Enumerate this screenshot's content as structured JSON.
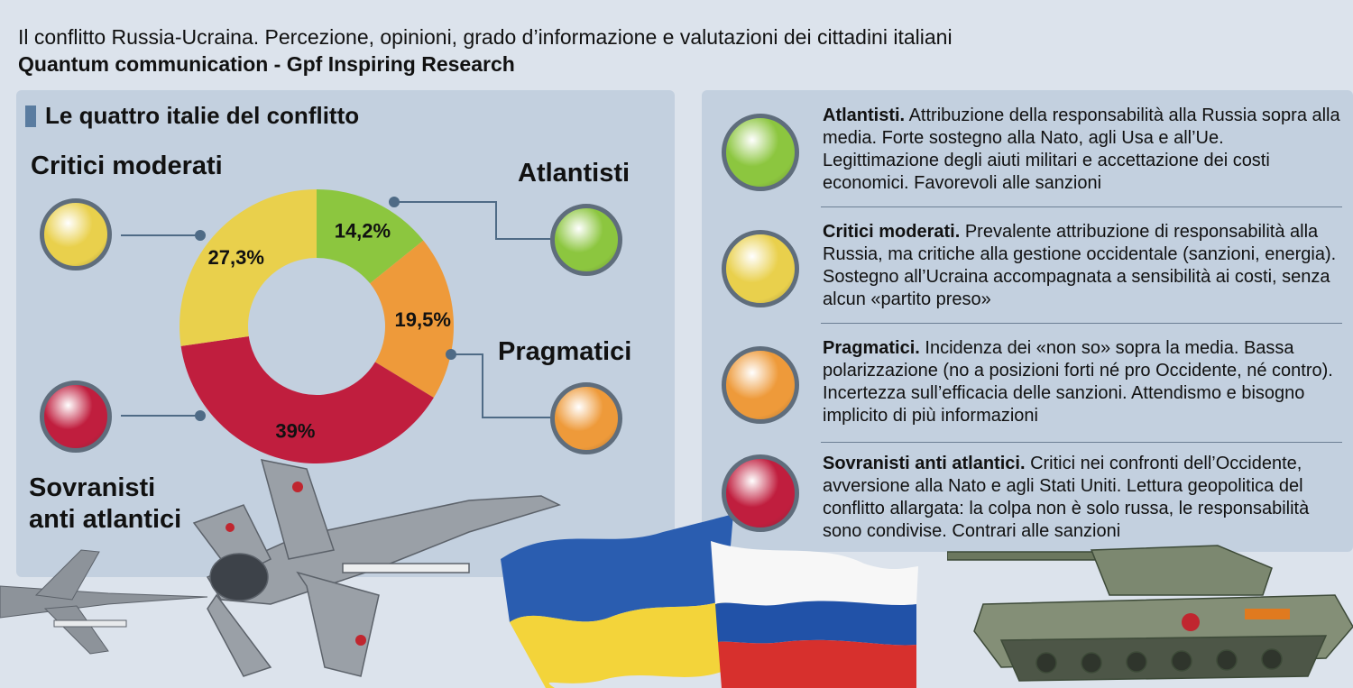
{
  "header": {
    "title": "Il conflitto Russia-Ucraina. Percezione, opinioni, grado d’informazione e valutazioni dei cittadini italiani",
    "subtitle": "Quantum communication - Gpf Inspiring Research"
  },
  "section_title": "Le quattro italie del conflitto",
  "categories": {
    "critici": "Critici moderati",
    "atlantisti": "Atlantisti",
    "pragmatici": "Pragmatici",
    "sovranisti_line1": "Sovranisti",
    "sovranisti_line2": "anti atlantici"
  },
  "colors": {
    "atlantisti": "#8cc63f",
    "pragmatici": "#ee9a3a",
    "sovranisti": "#c01e3e",
    "critici": "#e9d04c"
  },
  "chart_data": {
    "type": "pie",
    "title": "Le quattro italie del conflitto",
    "donut": true,
    "series": [
      {
        "name": "Atlantisti",
        "value": 14.2,
        "label": "14,2%",
        "color": "#8cc63f"
      },
      {
        "name": "Pragmatici",
        "value": 19.5,
        "label": "19,5%",
        "color": "#ee9a3a"
      },
      {
        "name": "Sovranisti anti atlantici",
        "value": 39,
        "label": "39%",
        "color": "#c01e3e"
      },
      {
        "name": "Critici moderati",
        "value": 27.3,
        "label": "27,3%",
        "color": "#e9d04c"
      }
    ]
  },
  "legend": [
    {
      "name": "Atlantisti.",
      "text": "Attribuzione della responsabilità alla Russia sopra alla media. Forte sostegno alla Nato, agli Usa e all’Ue. Legittimazione degli aiuti militari e accettazione dei costi economici. Favorevoli alle sanzioni",
      "color": "#8cc63f"
    },
    {
      "name": "Critici moderati.",
      "text": "Prevalente attribuzione di responsabilità alla Russia, ma critiche alla gestione occidentale (sanzioni, energia). Sostegno all’Ucraina accompagnata a sensibilità ai costi, senza alcun «partito preso»",
      "color": "#e9d04c"
    },
    {
      "name": "Pragmatici.",
      "text": "Incidenza dei «non so» sopra la media. Bassa polarizzazione (no a posizioni forti né pro Occidente, né contro). Incertezza sull’efficacia delle sanzioni. Attendismo e bisogno implicito di più informazioni",
      "color": "#ee9a3a"
    },
    {
      "name": "Sovranisti anti atlantici.",
      "text": "Critici nei confronti dell’Occidente, avversione alla Nato e agli Stati Uniti. Lettura geopolitica del conflitto allargata: la colpa non è solo russa, le responsabilità sono condivise. Contrari alle sanzioni",
      "color": "#c01e3e"
    }
  ],
  "decorations": {
    "aircraft": "fighter-jet-image",
    "flags": [
      "ukraine-flag",
      "russia-flag"
    ],
    "tank": "tank-image"
  }
}
